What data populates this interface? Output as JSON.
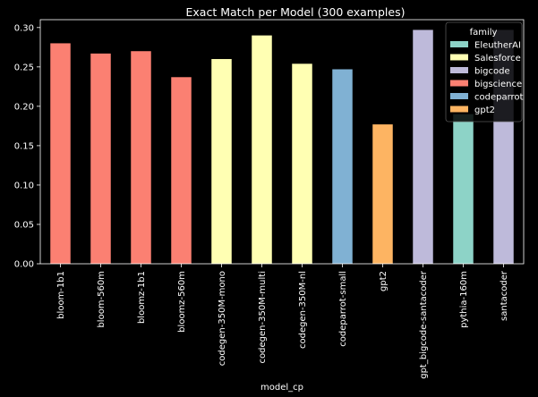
{
  "chart_data": {
    "type": "bar",
    "title": "Exact Match per Model (300 examples)",
    "xlabel": "model_cp",
    "ylabel": "",
    "ylim": [
      0,
      0.31
    ],
    "yticks": [
      "0.00",
      "0.05",
      "0.10",
      "0.15",
      "0.20",
      "0.25",
      "0.30"
    ],
    "categories": [
      "bloom-1b1",
      "bloom-560m",
      "bloomz-1b1",
      "bloomz-560m",
      "codegen-350M-mono",
      "codegen-350M-multi",
      "codegen-350M-nl",
      "codeparrot-small",
      "gpt2",
      "gpt_bigcode-santacoder",
      "pythia-160m",
      "santacoder"
    ],
    "values": [
      0.28,
      0.267,
      0.27,
      0.237,
      0.26,
      0.29,
      0.254,
      0.247,
      0.177,
      0.297,
      0.19,
      0.297
    ],
    "families": [
      "bigscience",
      "bigscience",
      "bigscience",
      "bigscience",
      "Salesforce",
      "Salesforce",
      "Salesforce",
      "codeparrot",
      "gpt2",
      "bigcode",
      "EleutherAI",
      "bigcode"
    ],
    "legend": {
      "title": "family",
      "placement": "top-right",
      "entries": [
        {
          "name": "EleutherAI",
          "color": "#8dd3c7"
        },
        {
          "name": "Salesforce",
          "color": "#ffffb3"
        },
        {
          "name": "bigcode",
          "color": "#bebada"
        },
        {
          "name": "bigscience",
          "color": "#fb8072"
        },
        {
          "name": "codeparrot",
          "color": "#80b1d3"
        },
        {
          "name": "gpt2",
          "color": "#fdb462"
        }
      ]
    },
    "grid": false
  }
}
